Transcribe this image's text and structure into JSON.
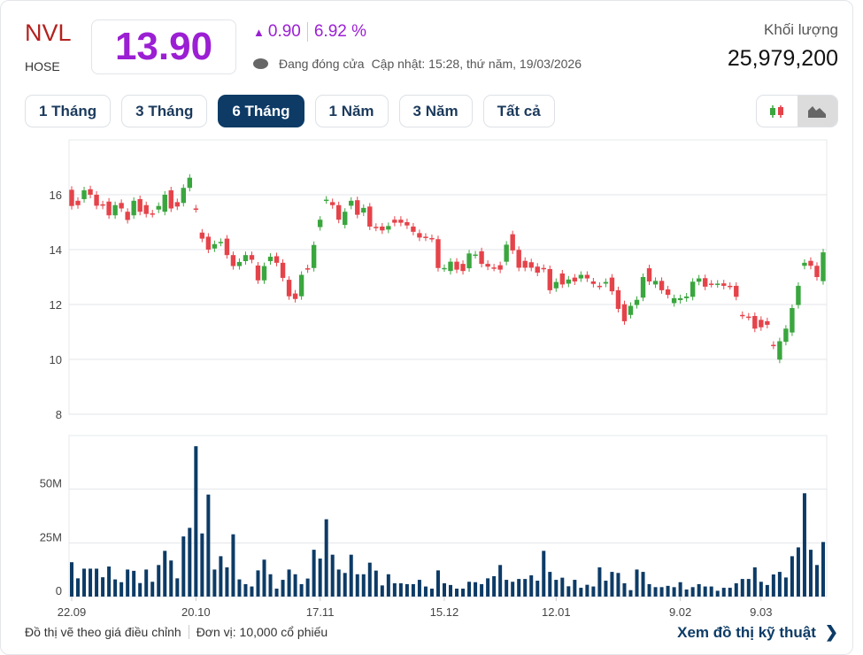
{
  "header": {
    "ticker": "NVL",
    "exchange": "HOSE",
    "price": "13.90",
    "change": "0.90",
    "change_pct": "6.92 %",
    "change_direction": "up",
    "status": "Đang đóng cửa",
    "updated": "Cập nhật: 15:28, thứ năm, 19/03/2026",
    "volume_label": "Khối lượng",
    "volume_value": "25,979,200"
  },
  "tabs": [
    {
      "label": "1 Tháng",
      "active": false
    },
    {
      "label": "3 Tháng",
      "active": false
    },
    {
      "label": "6 Tháng",
      "active": true
    },
    {
      "label": "1 Năm",
      "active": false
    },
    {
      "label": "3 Năm",
      "active": false
    },
    {
      "label": "Tất cả",
      "active": false
    }
  ],
  "chart_toggle": {
    "candlestick_icon": "candlestick-icon",
    "area_icon": "area-chart-icon",
    "active": "area"
  },
  "colors": {
    "up": "#3aa63e",
    "down": "#e5434a",
    "volume": "#0d3b66",
    "price": "#9b1fd3",
    "ticker": "#b3221f",
    "accent": "#0d3b66"
  },
  "chart_data": {
    "type": "candlestick",
    "price_axis": {
      "ticks": [
        "8",
        "10",
        "12",
        "14",
        "16"
      ],
      "ylim": [
        8,
        18
      ]
    },
    "volume_axis": {
      "ticks": [
        "0",
        "25M",
        "50M"
      ],
      "ylim": [
        0,
        75
      ],
      "unit": "M"
    },
    "x_ticks": [
      {
        "label": "22.09",
        "index": 0
      },
      {
        "label": "20.10",
        "index": 20
      },
      {
        "label": "17.11",
        "index": 40
      },
      {
        "label": "15.12",
        "index": 60
      },
      {
        "label": "12.01",
        "index": 78
      },
      {
        "label": "9.02",
        "index": 98
      },
      {
        "label": "9.03",
        "index": 111
      }
    ],
    "grid": true,
    "open": [
      16.18,
      15.78,
      15.84,
      16.2,
      16.0,
      15.65,
      15.75,
      15.25,
      15.7,
      15.38,
      15.25,
      15.84,
      15.62,
      15.32,
      15.46,
      15.38,
      16.16,
      15.73,
      15.7,
      16.25,
      15.5,
      14.62,
      14.47,
      14.04,
      14.25,
      14.4,
      13.8,
      13.4,
      13.58,
      13.8,
      13.42,
      12.88,
      13.58,
      13.76,
      13.52,
      12.9,
      12.4,
      12.3,
      13.32,
      13.33,
      14.82,
      15.8,
      15.73,
      15.62,
      14.9,
      15.6,
      15.8,
      15.35,
      15.57,
      14.83,
      14.84,
      14.73,
      15.09,
      15.09,
      15.0,
      14.84,
      14.6,
      14.47,
      14.42,
      14.38,
      13.32,
      13.22,
      13.56,
      13.48,
      13.32,
      13.8,
      13.94,
      13.48,
      13.35,
      13.43,
      13.56,
      14.56,
      13.99,
      13.59,
      13.54,
      13.38,
      13.33,
      13.29,
      12.59,
      13.13,
      12.76,
      12.98,
      12.95,
      13.08,
      12.84,
      12.68,
      12.76,
      12.98,
      12.52,
      12.01,
      11.62,
      11.98,
      12.25,
      13.32,
      12.73,
      12.86,
      12.55,
      12.05,
      12.16,
      12.23,
      12.28,
      12.83,
      12.96,
      12.76,
      12.74,
      12.77,
      12.68,
      12.68,
      11.62,
      11.56,
      11.58,
      11.44,
      11.39,
      10.53,
      9.99,
      10.64,
      10.98,
      11.98,
      13.41,
      13.59,
      13.41,
      12.85
    ],
    "close": [
      15.59,
      15.62,
      16.16,
      16.0,
      15.6,
      15.6,
      15.25,
      15.62,
      15.5,
      15.08,
      15.78,
      15.38,
      15.3,
      15.3,
      15.59,
      16.0,
      15.5,
      15.57,
      16.25,
      16.62,
      15.48,
      14.4,
      14.0,
      14.2,
      14.28,
      13.8,
      13.4,
      13.55,
      13.8,
      13.63,
      12.88,
      13.4,
      13.74,
      13.52,
      12.97,
      12.3,
      12.2,
      13.08,
      13.28,
      14.17,
      15.09,
      15.82,
      15.62,
      15.09,
      15.38,
      15.78,
      15.27,
      15.52,
      14.84,
      14.8,
      14.7,
      14.86,
      14.98,
      14.98,
      14.88,
      14.65,
      14.44,
      14.44,
      14.4,
      13.33,
      13.33,
      13.56,
      13.27,
      13.22,
      13.86,
      13.82,
      13.48,
      13.38,
      13.34,
      13.27,
      14.18,
      13.97,
      13.34,
      13.34,
      13.34,
      13.16,
      13.3,
      12.52,
      12.82,
      12.73,
      12.91,
      12.84,
      13.08,
      12.95,
      12.75,
      12.67,
      12.82,
      12.48,
      11.84,
      11.39,
      11.95,
      12.17,
      13.0,
      12.84,
      12.86,
      12.52,
      12.35,
      12.23,
      12.23,
      12.29,
      12.83,
      12.95,
      12.65,
      12.75,
      12.76,
      12.68,
      12.67,
      12.28,
      11.6,
      11.55,
      11.12,
      11.17,
      11.26,
      10.5,
      10.66,
      11.12,
      11.87,
      12.68,
      13.52,
      13.41,
      13.0,
      13.9
    ],
    "volume": [
      16,
      8.5,
      13,
      13,
      13,
      9,
      14,
      8,
      6.7,
      12.6,
      12,
      6.3,
      12.6,
      6.9,
      14.7,
      21.3,
      16.8,
      8.5,
      28,
      32,
      70,
      29.4,
      47.5,
      12.6,
      18.8,
      13.6,
      29,
      8,
      5.8,
      4.7,
      12.2,
      17.2,
      10.4,
      3.7,
      7.8,
      12.6,
      10.4,
      5.8,
      8.4,
      21.8,
      17.7,
      36,
      19.5,
      12.6,
      11,
      19.5,
      10.4,
      10.4,
      15.8,
      12.1,
      5.2,
      10.4,
      6.2,
      6.2,
      5.8,
      5.8,
      7.8,
      4.7,
      3.7,
      12.2,
      6.2,
      5.4,
      3.7,
      3.7,
      6.9,
      6.7,
      5.8,
      8.5,
      9.5,
      14.7,
      7.8,
      6.9,
      8.2,
      8.2,
      9.9,
      7.4,
      21.3,
      11.5,
      7.8,
      8.8,
      4.8,
      7.8,
      4.1,
      5.5,
      4.7,
      13.6,
      7.4,
      11.5,
      11,
      6.2,
      3,
      12.6,
      11.5,
      5.8,
      4.4,
      4.4,
      5.0,
      4.4,
      6.7,
      3.3,
      4.4,
      5.8,
      4.7,
      4.7,
      2.7,
      4.1,
      4.1,
      6.2,
      8.2,
      8.2,
      13.6,
      6.9,
      5.4,
      10.3,
      11.5,
      8.9,
      18.8,
      22.9,
      48.1,
      21.8,
      14.7,
      25.4
    ]
  },
  "footer": {
    "note": "Đồ thị vẽ theo giá điều chỉnh",
    "unit": "Đơn vị: 10,000 cổ phiếu",
    "link": "Xem đồ thị kỹ thuật"
  }
}
